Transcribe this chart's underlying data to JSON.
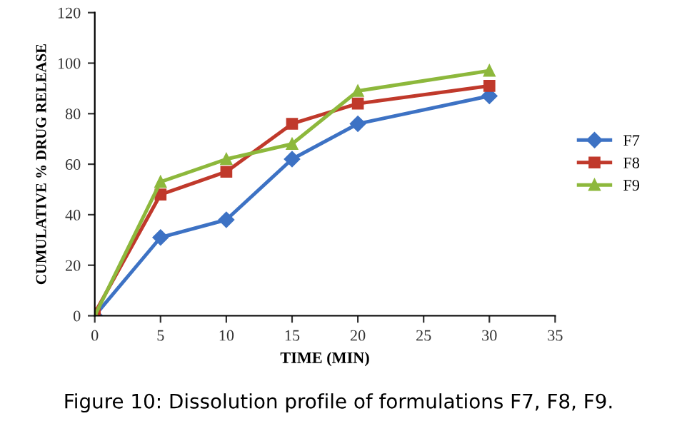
{
  "chart_data": {
    "type": "line",
    "xlabel": "TIME (MIN)",
    "ylabel": "CUMULATIVE % DRUG RELEASE",
    "x": [
      0,
      5,
      10,
      15,
      20,
      30
    ],
    "series": [
      {
        "name": "F7",
        "color": "#3d72c4",
        "marker": "diamond",
        "values": [
          0,
          31,
          38,
          62,
          76,
          87
        ]
      },
      {
        "name": "F8",
        "color": "#c0392b",
        "marker": "square",
        "values": [
          1,
          48,
          57,
          76,
          84,
          91
        ]
      },
      {
        "name": "F9",
        "color": "#8db83c",
        "marker": "triangle",
        "values": [
          0,
          53,
          62,
          68,
          89,
          97
        ]
      }
    ],
    "xlim": [
      0,
      35
    ],
    "xticks": [
      0,
      5,
      10,
      15,
      20,
      25,
      30,
      35
    ],
    "ylim": [
      0,
      120
    ],
    "yticks": [
      0,
      20,
      40,
      60,
      80,
      100,
      120
    ],
    "grid": false,
    "legend": "right",
    "line_style": "solid",
    "annotations": [
      "Figure 10: Dissolution profile of formulations F7, F8, F9."
    ]
  }
}
